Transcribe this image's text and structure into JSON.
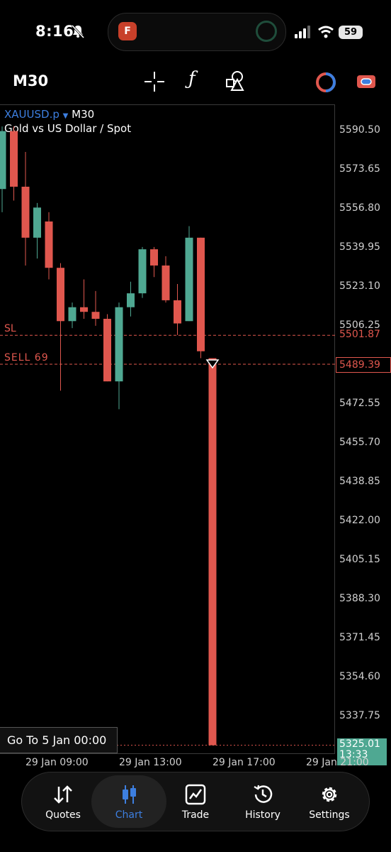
{
  "status_bar": {
    "time": "8:16",
    "battery": "59",
    "island_app_letter": "F"
  },
  "toolbar": {
    "timeframe": "M30"
  },
  "chart_header": {
    "symbol": "XAUUSD.p",
    "symbol_tf": "M30",
    "description": "Gold vs US Dollar / Spot"
  },
  "price_axis": {
    "labels": [
      "5590.50",
      "5573.65",
      "5556.80",
      "5539.95",
      "5523.10",
      "5506.25",
      "5472.55",
      "5455.70",
      "5438.85",
      "5422.00",
      "5405.15",
      "5388.30",
      "5371.45",
      "5354.60",
      "5337.75"
    ],
    "sl_price": "5501.87",
    "order_price": "5489.39",
    "current_price": "5325.01",
    "current_timer": "13:33"
  },
  "order_lines": {
    "sl_label": "SL",
    "order_label": "SELL 69"
  },
  "time_axis": {
    "labels": [
      "29 Jan 09:00",
      "29 Jan 13:00",
      "29 Jan 17:00",
      "29 Jan 21:00"
    ]
  },
  "goto_button": "Go To 5 Jan 00:00",
  "colors": {
    "bull": "#4fa892",
    "bear": "#e0574e",
    "accent": "#3d7fe0",
    "sl_line": "#e0574e"
  },
  "chart_data": {
    "type": "candlestick",
    "title": "XAUUSD.p M30",
    "ylim": [
      5321,
      5600
    ],
    "candles": [
      {
        "o": 5565,
        "h": 5592,
        "l": 5555,
        "c": 5590,
        "dir": "bull"
      },
      {
        "o": 5590,
        "h": 5592,
        "l": 5560,
        "c": 5566,
        "dir": "bear"
      },
      {
        "o": 5566,
        "h": 5581,
        "l": 5532,
        "c": 5544,
        "dir": "bear"
      },
      {
        "o": 5544,
        "h": 5559,
        "l": 5535,
        "c": 5557,
        "dir": "bull"
      },
      {
        "o": 5551,
        "h": 5555,
        "l": 5526,
        "c": 5531,
        "dir": "bear"
      },
      {
        "o": 5531,
        "h": 5533,
        "l": 5478,
        "c": 5508,
        "dir": "bear"
      },
      {
        "o": 5508,
        "h": 5516,
        "l": 5505,
        "c": 5514,
        "dir": "bull"
      },
      {
        "o": 5514,
        "h": 5526,
        "l": 5509,
        "c": 5512,
        "dir": "bear"
      },
      {
        "o": 5512,
        "h": 5521,
        "l": 5506,
        "c": 5509,
        "dir": "bear"
      },
      {
        "o": 5509,
        "h": 5511,
        "l": 5482,
        "c": 5482,
        "dir": "bear"
      },
      {
        "o": 5482,
        "h": 5516,
        "l": 5470,
        "c": 5514,
        "dir": "bull"
      },
      {
        "o": 5514,
        "h": 5525,
        "l": 5510,
        "c": 5520,
        "dir": "bull"
      },
      {
        "o": 5520,
        "h": 5540,
        "l": 5518,
        "c": 5539,
        "dir": "bull"
      },
      {
        "o": 5539,
        "h": 5540,
        "l": 5527,
        "c": 5532,
        "dir": "bear"
      },
      {
        "o": 5532,
        "h": 5536,
        "l": 5516,
        "c": 5517,
        "dir": "bear"
      },
      {
        "o": 5517,
        "h": 5524,
        "l": 5502,
        "c": 5507,
        "dir": "bear"
      },
      {
        "o": 5508,
        "h": 5549,
        "l": 5508,
        "c": 5544,
        "dir": "bull"
      },
      {
        "o": 5544,
        "h": 5544,
        "l": 5492,
        "c": 5495,
        "dir": "bear"
      },
      {
        "o": 5492,
        "h": 5492,
        "l": 5325,
        "c": 5325,
        "dir": "bear"
      }
    ]
  },
  "tabs": [
    {
      "id": "quotes",
      "label": "Quotes"
    },
    {
      "id": "chart",
      "label": "Chart"
    },
    {
      "id": "trade",
      "label": "Trade"
    },
    {
      "id": "history",
      "label": "History"
    },
    {
      "id": "settings",
      "label": "Settings"
    }
  ]
}
